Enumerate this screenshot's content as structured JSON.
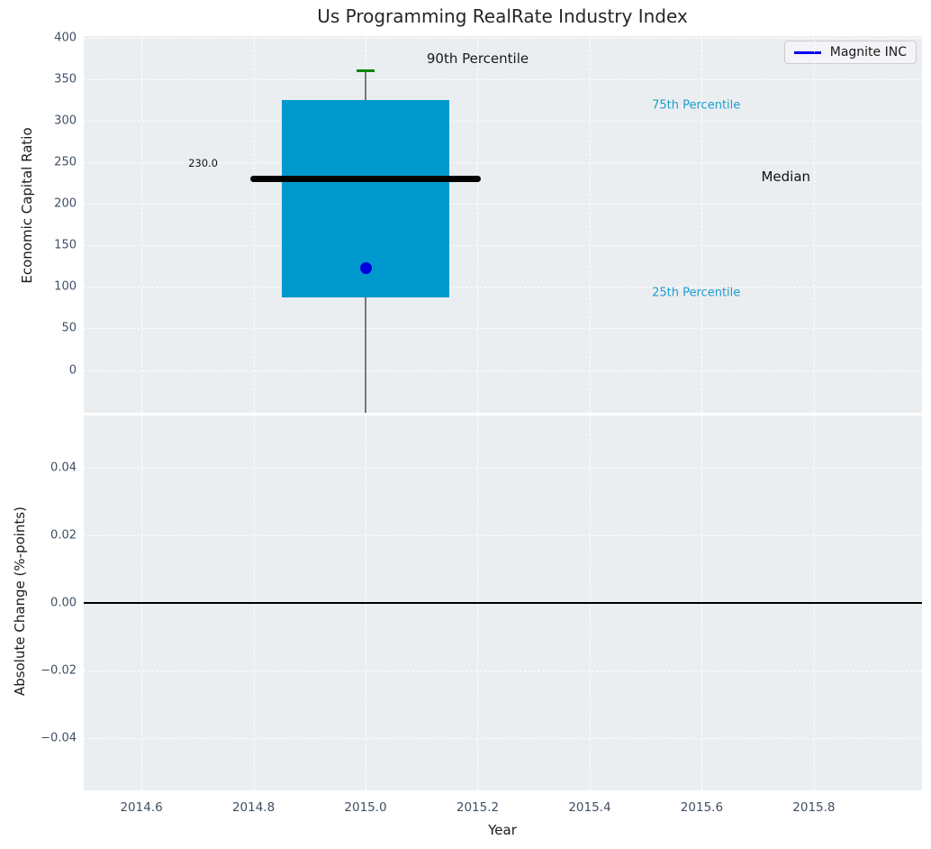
{
  "title": "Us Programming RealRate Industry Index",
  "legend": {
    "label": "Magnite INC",
    "line_color": "#0000ee"
  },
  "colors": {
    "axes_bg": "#ebeef0",
    "grid": "#ffffff",
    "box_fill": "#0099cd",
    "median_line": "#000000",
    "whisker": "#777777",
    "p90_cap": "#088708",
    "marker": "#0000dd",
    "tick_label": "#3f4f65",
    "percentile_label": "#1e9cd0",
    "dark_text": "#1a1a1a"
  },
  "chart_data": [
    {
      "type": "box",
      "title": "Us Programming RealRate Industry Index",
      "ylabel": "Economic Capital Ratio",
      "grid": true,
      "xlim": [
        2014.497,
        2015.993
      ],
      "ylim": [
        -51.5,
        402
      ],
      "xticks": [
        2014.6,
        2014.8,
        2015.0,
        2015.2,
        2015.4,
        2015.6,
        2015.8
      ],
      "yticks": [
        0,
        50,
        100,
        150,
        200,
        250,
        300,
        350,
        400
      ],
      "ytick_labels": [
        "0",
        "50",
        "100",
        "150",
        "200",
        "250",
        "300",
        "350",
        "400"
      ],
      "box": {
        "x": 2015.0,
        "box_width": 0.3,
        "q25": 87,
        "median": 230,
        "q75": 325,
        "p90": 360,
        "whisker_low": -60,
        "median_line_halfwidth": 0.205
      },
      "marker": {
        "name": "Magnite INC",
        "x": 2015.0,
        "y": 123
      },
      "annotations": [
        {
          "text": "90th Percentile",
          "x": 2015.2,
          "y": 375,
          "color": "#1a1a1a",
          "size": 15
        },
        {
          "text": "75th Percentile",
          "x": 2015.59,
          "y": 319,
          "color": "#1e9cd0",
          "size": 13
        },
        {
          "text": "Median",
          "x": 2015.75,
          "y": 233,
          "color": "#111111",
          "size": 15
        },
        {
          "text": "25th Percentile",
          "x": 2015.59,
          "y": 93,
          "color": "#1e9cd0",
          "size": 13
        },
        {
          "text": "230.0",
          "x": 2014.71,
          "y": 249,
          "color": "#111111",
          "size": 11.5
        }
      ],
      "legend": {
        "label": "Magnite INC",
        "loc": "upper right"
      }
    },
    {
      "type": "line",
      "ylabel": "Absolute Change (%-points)",
      "xlabel": "Year",
      "grid": true,
      "xlim": [
        2014.497,
        2015.993
      ],
      "ylim": [
        -0.0555,
        0.0555
      ],
      "xticks": [
        2014.6,
        2014.8,
        2015.0,
        2015.2,
        2015.4,
        2015.6,
        2015.8
      ],
      "xtick_labels": [
        "2014.6",
        "2014.8",
        "2015.0",
        "2015.2",
        "2015.4",
        "2015.6",
        "2015.8"
      ],
      "yticks": [
        -0.04,
        -0.02,
        0.0,
        0.02,
        0.04
      ],
      "ytick_labels": [
        "−0.04",
        "−0.02",
        "0.00",
        "0.02",
        "0.04"
      ],
      "zero_line": 0.0,
      "series": []
    }
  ]
}
